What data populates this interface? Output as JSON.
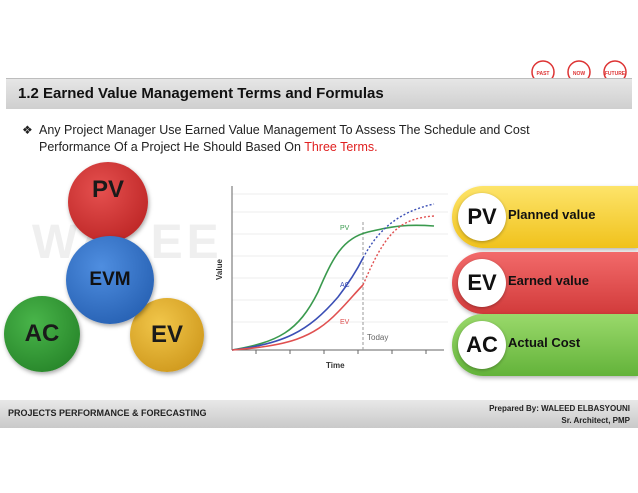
{
  "slide": {
    "title": "1.2 Earned Value Management Terms and Formulas",
    "bullet_icon": "❖",
    "bullet_text": "Any Project Manager Use Earned Value Management To Assess The Schedule and Cost Performance Of a Project He Should Based On ",
    "bullet_highlight": "Three Terms.",
    "watermark": "WALEE",
    "bulbs": [
      "PAST",
      "NOW",
      "FUTURE"
    ]
  },
  "venn": {
    "pv": "PV",
    "ac": "AC",
    "ev": "EV",
    "center": "EVM"
  },
  "diagram": {
    "y_label": "Value",
    "x_label": "Time",
    "today_label": "Today",
    "pv_label": "PV",
    "ac_label": "AC",
    "ev_label": "EV",
    "colors": {
      "pv": "#3a9a4e",
      "ac": "#3b4fb5",
      "ev": "#e05050"
    }
  },
  "terms": [
    {
      "abbr": "PV",
      "label": "Planned value"
    },
    {
      "abbr": "EV",
      "label": "Earned value"
    },
    {
      "abbr": "AC",
      "label": "Actual Cost"
    }
  ],
  "footer": {
    "left": "PROJECTS  PERFORMANCE & FORECASTING",
    "prepared": "Prepared By: WALEED ELBASYOUNI",
    "role": "Sr. Architect, PMP"
  }
}
